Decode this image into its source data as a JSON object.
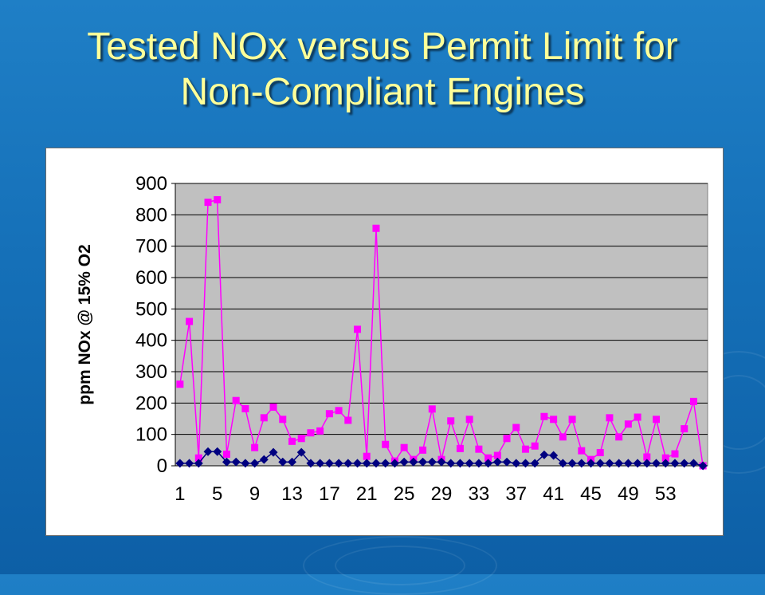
{
  "slide": {
    "title_line1": "Tested NOx versus Permit Limit for",
    "title_line2": "Non-Compliant Engines"
  },
  "colors": {
    "background": "#1570b8",
    "title": "#ffff99",
    "plot_area": "#c0c0c0",
    "tested_series": "#ff00ff",
    "limit_series": "#000080"
  },
  "chart_data": {
    "type": "line",
    "title": "",
    "xlabel": "",
    "ylabel": "ppm NOx @ 15% O2",
    "ylim": [
      0,
      900
    ],
    "yticks": [
      0,
      100,
      200,
      300,
      400,
      500,
      600,
      700,
      800,
      900
    ],
    "xticks": [
      1,
      5,
      9,
      13,
      17,
      21,
      25,
      29,
      33,
      37,
      41,
      45,
      49,
      53
    ],
    "grid": true,
    "legend": "none",
    "series": [
      {
        "color": "#ff00ff",
        "marker": "square",
        "x": [
          1,
          2,
          3,
          4,
          5,
          6,
          7,
          8,
          9,
          10,
          11,
          12,
          13,
          14,
          15,
          16,
          17,
          18,
          19,
          20,
          21,
          22,
          23,
          24,
          25,
          26,
          27,
          28,
          29,
          30,
          31,
          32,
          33,
          34,
          35,
          36,
          37,
          38,
          39,
          40,
          41,
          42,
          43,
          44,
          45,
          46,
          47,
          48,
          49,
          50,
          51,
          52,
          53,
          54,
          55,
          56,
          57
        ],
        "values": [
          260,
          460,
          25,
          840,
          848,
          37,
          208,
          182,
          58,
          153,
          187,
          148,
          78,
          87,
          105,
          111,
          166,
          176,
          145,
          435,
          30,
          757,
          68,
          15,
          58,
          20,
          50,
          181,
          20,
          143,
          55,
          148,
          53,
          25,
          33,
          87,
          122,
          53,
          63,
          157,
          148,
          92,
          148,
          48,
          20,
          42,
          153,
          92,
          133,
          155,
          28,
          148,
          25,
          38,
          118,
          205,
          0
        ]
      },
      {
        "color": "#000080",
        "marker": "diamond",
        "x": [
          1,
          2,
          3,
          4,
          5,
          6,
          7,
          8,
          9,
          10,
          11,
          12,
          13,
          14,
          15,
          16,
          17,
          18,
          19,
          20,
          21,
          22,
          23,
          24,
          25,
          26,
          27,
          28,
          29,
          30,
          31,
          32,
          33,
          34,
          35,
          36,
          37,
          38,
          39,
          40,
          41,
          42,
          43,
          44,
          45,
          46,
          47,
          48,
          49,
          50,
          51,
          52,
          53,
          54,
          55,
          56,
          57
        ],
        "values": [
          8,
          8,
          8,
          45,
          45,
          12,
          12,
          8,
          8,
          20,
          43,
          12,
          12,
          43,
          8,
          8,
          8,
          8,
          8,
          8,
          8,
          8,
          8,
          8,
          12,
          12,
          12,
          12,
          12,
          8,
          8,
          8,
          8,
          8,
          12,
          12,
          8,
          8,
          8,
          35,
          33,
          8,
          8,
          8,
          8,
          8,
          8,
          8,
          8,
          8,
          8,
          8,
          8,
          8,
          8,
          8,
          0
        ]
      }
    ]
  }
}
